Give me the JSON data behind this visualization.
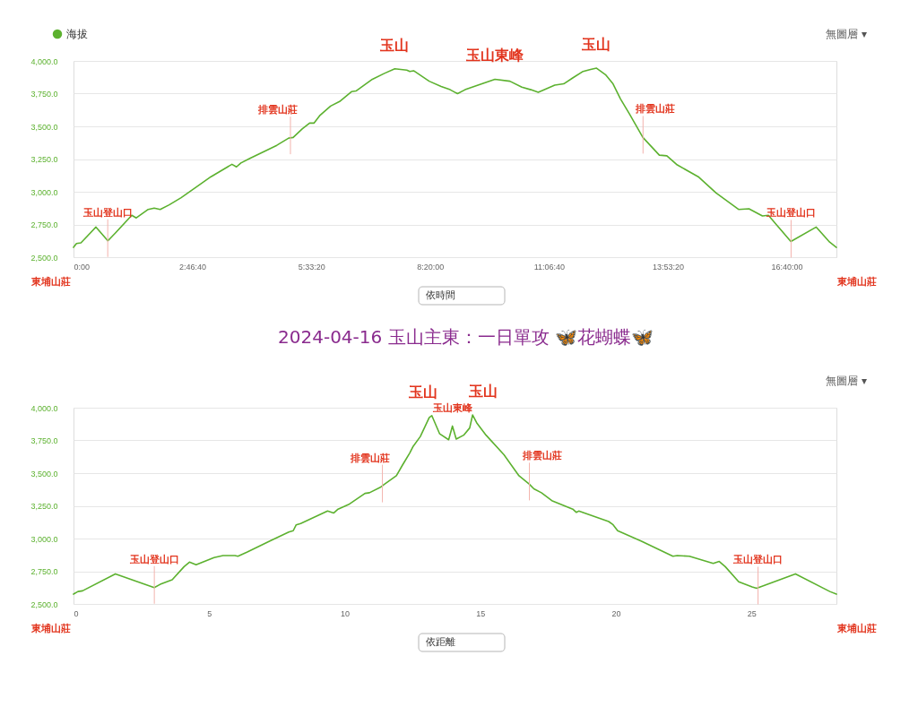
{
  "chart_data": [
    {
      "type": "line",
      "x": [
        0,
        0.069,
        0.174,
        0.524,
        0.803,
        0.979,
        1.362,
        1.467,
        1.746,
        1.886,
        2.026,
        2.236,
        2.515,
        2.865,
        3.213,
        3.703,
        3.808,
        3.912,
        4.122,
        4.47,
        4.751,
        5.029,
        5.134,
        5.344,
        5.518,
        5.623,
        5.763,
        6.008,
        6.218,
        6.496,
        6.601,
        6.985,
        7.266,
        7.509,
        7.789,
        7.859,
        7.949,
        8.313,
        8.592,
        8.802,
        8.976,
        9.151,
        9.499,
        9.849,
        10.199,
        10.478,
        10.688,
        10.862,
        11.247,
        11.457,
        11.666,
        11.909,
        12.085,
        12.224,
        12.433,
        12.609,
        12.783,
        12.993,
        13.307,
        13.691,
        13.867,
        14.11,
        14.6,
        15.019,
        15.543,
        15.786,
        16.101,
        16.241,
        16.45,
        16.765,
        17.358,
        17.672,
        17.83
      ],
      "series": [
        {
          "name": "海拔",
          "color": "#5cb12f",
          "values": [
            2575,
            2605,
            2610,
            2730,
            2625,
            2685,
            2820,
            2800,
            2865,
            2875,
            2865,
            2900,
            2955,
            3035,
            3115,
            3210,
            3190,
            3220,
            3255,
            3310,
            3355,
            3410,
            3415,
            3480,
            3525,
            3525,
            3585,
            3655,
            3690,
            3765,
            3770,
            3860,
            3905,
            3940,
            3930,
            3920,
            3925,
            3845,
            3805,
            3780,
            3750,
            3780,
            3820,
            3860,
            3845,
            3800,
            3780,
            3760,
            3815,
            3825,
            3870,
            3920,
            3935,
            3945,
            3895,
            3825,
            3710,
            3595,
            3415,
            3280,
            3275,
            3205,
            3115,
            2990,
            2865,
            2870,
            2815,
            2820,
            2740,
            2620,
            2730,
            2615,
            2575
          ]
        }
      ],
      "xlim": [
        0,
        17.83
      ],
      "xticks": [
        {
          "value": 0,
          "label": "0:00"
        },
        {
          "value": 2.7778,
          "label": "2:46:40"
        },
        {
          "value": 5.5556,
          "label": "5:33:20"
        },
        {
          "value": 8.3333,
          "label": "8:20:00"
        },
        {
          "value": 11.1111,
          "label": "11:06:40"
        },
        {
          "value": 13.8889,
          "label": "13:53:20"
        },
        {
          "value": 16.6667,
          "label": "16:40:00"
        }
      ],
      "ylim": [
        2500,
        4000
      ],
      "yticks": [
        {
          "value": 2500,
          "label": "2,500.0"
        },
        {
          "value": 2750,
          "label": "2,750.0"
        },
        {
          "value": 3000,
          "label": "3,000.0"
        },
        {
          "value": 3250,
          "label": "3,250.0"
        },
        {
          "value": 3500,
          "label": "3,500.0"
        },
        {
          "value": 3750,
          "label": "3,750.0"
        },
        {
          "value": 4000,
          "label": "4,000.0"
        }
      ],
      "grid": "y",
      "legend": "top left",
      "annotations": [
        "無圖層 ▾",
        {
          "text": "玉山",
          "x": 7.51,
          "y": 3940
        },
        {
          "text": "玉山東峰",
          "x": 9.85,
          "y": 3860
        },
        {
          "text": "玉山",
          "x": 12.22,
          "y": 3945
        },
        {
          "text": "排雲山莊",
          "x": 5.07,
          "y": 3410
        },
        {
          "text": "排雲山莊",
          "x": 13.31,
          "y": 3415
        },
        {
          "text": "玉山登山口",
          "x": 0.8,
          "y": 2625
        },
        {
          "text": "玉山登山口",
          "x": 16.77,
          "y": 2620
        },
        "東埔山莊",
        "東埔山莊",
        "依時間"
      ]
    },
    {
      "type": "line",
      "title": "2024-04-16 玉山主東：一日單攻 🦋花蝴蝶🦋",
      "x": [
        0,
        0.165,
        0.331,
        1.544,
        2.976,
        3.198,
        3.638,
        4.077,
        4.276,
        4.52,
        5.182,
        5.513,
        5.952,
        6.062,
        6.392,
        7.275,
        7.937,
        8.102,
        8.211,
        8.376,
        9.368,
        9.59,
        9.755,
        10.142,
        10.747,
        10.913,
        11.3,
        11.465,
        11.905,
        12.126,
        12.401,
        12.51,
        12.788,
        13.118,
        13.211,
        13.502,
        13.833,
        13.972,
        14.111,
        14.385,
        14.607,
        14.716,
        14.881,
        15.212,
        15.873,
        16.425,
        16.809,
        16.974,
        17.252,
        17.636,
        18.409,
        18.542,
        18.628,
        19.732,
        19.898,
        20.063,
        20.943,
        22.1,
        22.265,
        22.708,
        23.588,
        23.81,
        24.031,
        24.527,
        25.023,
        25.188,
        26.62,
        27.887,
        28.13
      ],
      "series": [
        {
          "name": "海拔",
          "color": "#5cb12f",
          "values": [
            2575,
            2595,
            2600,
            2730,
            2625,
            2650,
            2685,
            2785,
            2820,
            2800,
            2855,
            2870,
            2870,
            2865,
            2895,
            2985,
            3050,
            3060,
            3105,
            3115,
            3210,
            3195,
            3225,
            3260,
            3345,
            3350,
            3390,
            3415,
            3480,
            3560,
            3655,
            3700,
            3780,
            3925,
            3940,
            3800,
            3755,
            3860,
            3760,
            3790,
            3845,
            3945,
            3880,
            3790,
            3640,
            3480,
            3415,
            3380,
            3350,
            3290,
            3225,
            3200,
            3210,
            3130,
            3105,
            3060,
            2980,
            2865,
            2870,
            2865,
            2810,
            2825,
            2785,
            2670,
            2630,
            2620,
            2730,
            2595,
            2575
          ]
        }
      ],
      "xlim": [
        0,
        28.13
      ],
      "xticks": [
        0,
        5,
        10,
        15,
        20,
        25
      ],
      "ylim": [
        2500,
        4000
      ],
      "yticks": [
        {
          "value": 2500,
          "label": "2,500.0"
        },
        {
          "value": 2750,
          "label": "2,750.0"
        },
        {
          "value": 3000,
          "label": "3,000.0"
        },
        {
          "value": 3250,
          "label": "3,250.0"
        },
        {
          "value": 3500,
          "label": "3,500.0"
        },
        {
          "value": 3750,
          "label": "3,750.0"
        },
        {
          "value": 4000,
          "label": "4,000.0"
        }
      ],
      "grid": "y",
      "legend": "top left",
      "annotations": [
        "無圖層 ▾",
        {
          "text": "玉山",
          "x": 13.21,
          "y": 3940
        },
        {
          "text": "玉山東峰",
          "x": 13.97,
          "y": 3860
        },
        {
          "text": "玉山",
          "x": 14.72,
          "y": 3945
        },
        {
          "text": "排雲山莊",
          "x": 11.39,
          "y": 3400
        },
        {
          "text": "排雲山莊",
          "x": 16.81,
          "y": 3415
        },
        {
          "text": "玉山登山口",
          "x": 2.98,
          "y": 2625
        },
        {
          "text": "玉山登山口",
          "x": 25.24,
          "y": 2620
        },
        "東埔山莊",
        "東埔山莊",
        "依距離"
      ]
    }
  ]
}
